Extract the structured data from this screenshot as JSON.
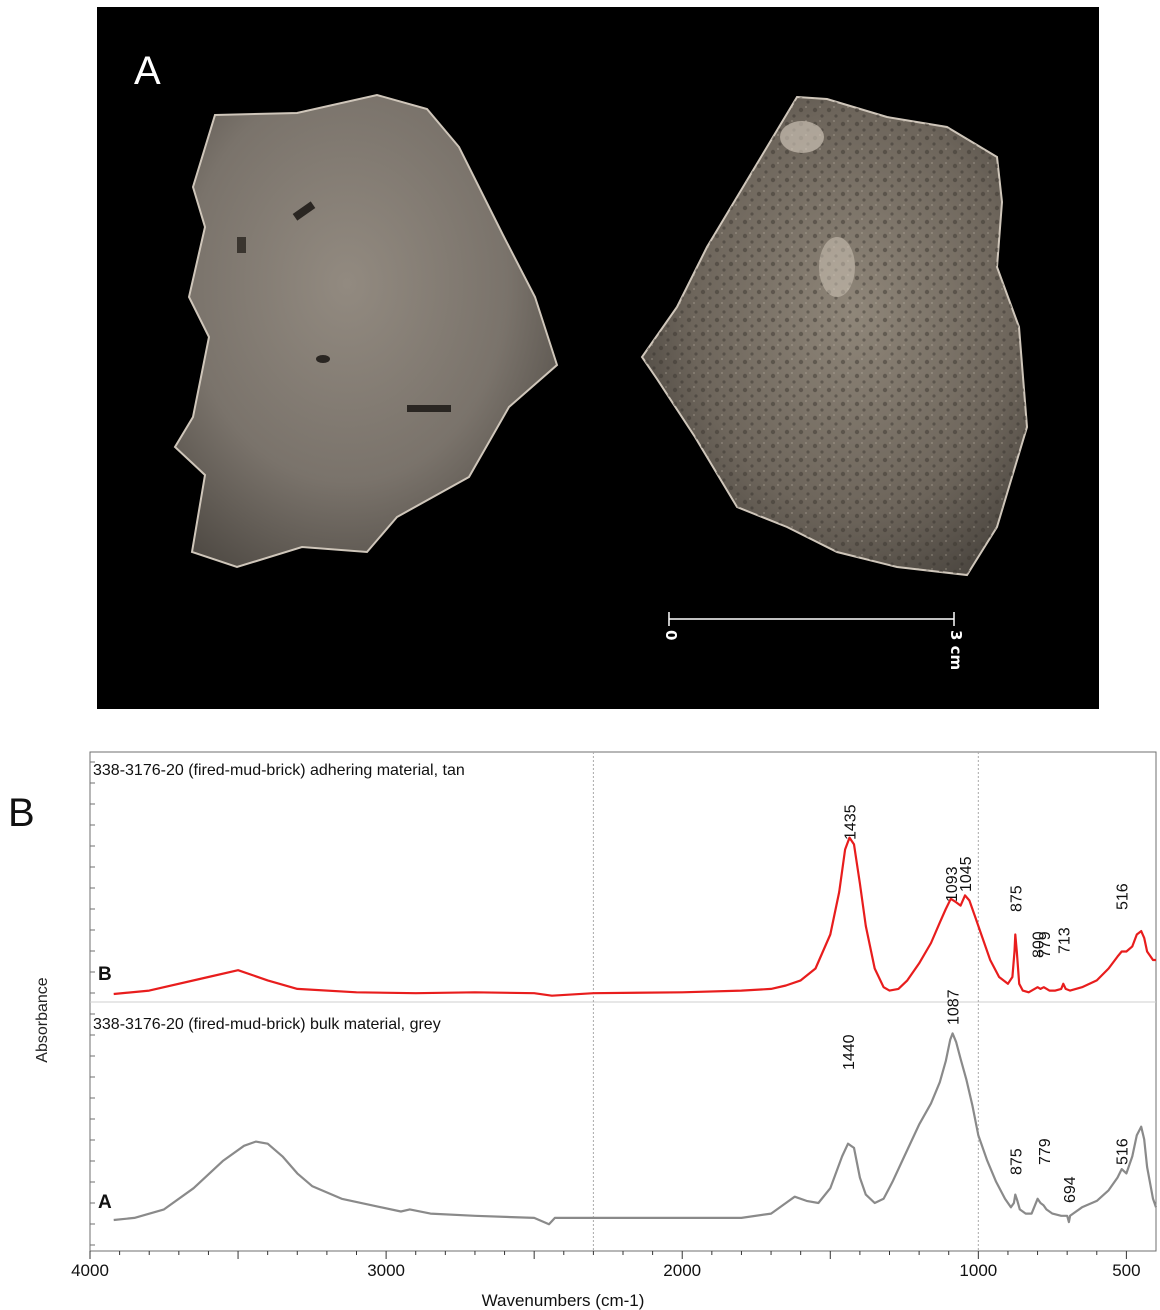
{
  "panel_a": {
    "label": "A",
    "scale_bar": {
      "start": "0",
      "end": "3 cm"
    }
  },
  "panel_b": {
    "label": "B"
  },
  "chart_data": {
    "type": "line",
    "xlabel": "Wavenumbers (cm-1)",
    "ylabel": "Absorbance",
    "xlim": [
      4000,
      400
    ],
    "x_reversed": true,
    "x_ticks": [
      4000,
      3000,
      2000,
      1000,
      500
    ],
    "x_tick_labels": [
      "4000",
      "3000",
      "2000",
      "1000",
      "500"
    ],
    "series": [
      {
        "name": "B",
        "title": "338-3176-20 (fired-mud-brick) adhering material, tan",
        "color": "#e81d1d",
        "peak_labels": [
          "1435",
          "1093",
          "1045",
          "875",
          "800",
          "779",
          "713",
          "516"
        ],
        "x": [
          3920,
          3800,
          3600,
          3500,
          3400,
          3300,
          3100,
          2900,
          2700,
          2500,
          2440,
          2300,
          2000,
          1800,
          1700,
          1650,
          1600,
          1550,
          1500,
          1470,
          1450,
          1435,
          1420,
          1400,
          1380,
          1350,
          1320,
          1300,
          1270,
          1240,
          1200,
          1160,
          1130,
          1110,
          1093,
          1075,
          1060,
          1045,
          1030,
          1010,
          990,
          960,
          930,
          900,
          885,
          878,
          875,
          870,
          862,
          850,
          830,
          800,
          790,
          779,
          760,
          740,
          720,
          713,
          705,
          690,
          650,
          600,
          560,
          530,
          516,
          500,
          480,
          465,
          450,
          440,
          430,
          410,
          400
        ],
        "y": [
          0.0,
          0.02,
          0.1,
          0.14,
          0.08,
          0.03,
          0.01,
          0.005,
          0.01,
          0.005,
          -0.01,
          0.005,
          0.01,
          0.02,
          0.03,
          0.05,
          0.08,
          0.15,
          0.35,
          0.6,
          0.85,
          0.92,
          0.88,
          0.65,
          0.4,
          0.15,
          0.04,
          0.02,
          0.03,
          0.08,
          0.18,
          0.3,
          0.42,
          0.5,
          0.56,
          0.54,
          0.52,
          0.58,
          0.55,
          0.45,
          0.35,
          0.2,
          0.1,
          0.06,
          0.1,
          0.25,
          0.35,
          0.25,
          0.06,
          0.02,
          0.01,
          0.04,
          0.03,
          0.04,
          0.02,
          0.02,
          0.03,
          0.06,
          0.03,
          0.02,
          0.04,
          0.08,
          0.15,
          0.22,
          0.25,
          0.25,
          0.28,
          0.35,
          0.37,
          0.33,
          0.25,
          0.2,
          0.2
        ]
      },
      {
        "name": "A",
        "title": "338-3176-20 (fired-mud-brick) bulk material, grey",
        "color": "#8a8a8a",
        "peak_labels": [
          "1440",
          "1087",
          "875",
          "779",
          "694",
          "516"
        ],
        "x": [
          3920,
          3850,
          3750,
          3650,
          3550,
          3480,
          3440,
          3400,
          3350,
          3300,
          3250,
          3150,
          3050,
          2950,
          2920,
          2850,
          2700,
          2500,
          2450,
          2430,
          2400,
          2300,
          2000,
          1800,
          1700,
          1650,
          1620,
          1580,
          1540,
          1500,
          1460,
          1440,
          1420,
          1400,
          1380,
          1350,
          1320,
          1290,
          1250,
          1200,
          1160,
          1130,
          1110,
          1095,
          1087,
          1075,
          1060,
          1040,
          1020,
          1000,
          970,
          940,
          910,
          890,
          880,
          875,
          868,
          860,
          840,
          820,
          800,
          790,
          780,
          770,
          750,
          720,
          700,
          694,
          690,
          680,
          650,
          600,
          560,
          530,
          516,
          500,
          480,
          465,
          450,
          440,
          430,
          410,
          400
        ],
        "y": [
          0.0,
          0.01,
          0.05,
          0.15,
          0.28,
          0.35,
          0.37,
          0.36,
          0.3,
          0.22,
          0.16,
          0.1,
          0.07,
          0.04,
          0.05,
          0.03,
          0.02,
          0.01,
          -0.02,
          0.01,
          0.01,
          0.01,
          0.01,
          0.01,
          0.03,
          0.08,
          0.11,
          0.09,
          0.08,
          0.15,
          0.3,
          0.36,
          0.34,
          0.2,
          0.12,
          0.08,
          0.1,
          0.18,
          0.3,
          0.45,
          0.55,
          0.65,
          0.75,
          0.85,
          0.88,
          0.84,
          0.76,
          0.66,
          0.54,
          0.4,
          0.28,
          0.18,
          0.1,
          0.06,
          0.08,
          0.12,
          0.09,
          0.05,
          0.03,
          0.03,
          0.1,
          0.08,
          0.07,
          0.05,
          0.03,
          0.02,
          0.02,
          -0.01,
          0.02,
          0.03,
          0.06,
          0.09,
          0.14,
          0.2,
          0.24,
          0.22,
          0.3,
          0.4,
          0.44,
          0.38,
          0.25,
          0.1,
          0.06
        ]
      }
    ]
  }
}
